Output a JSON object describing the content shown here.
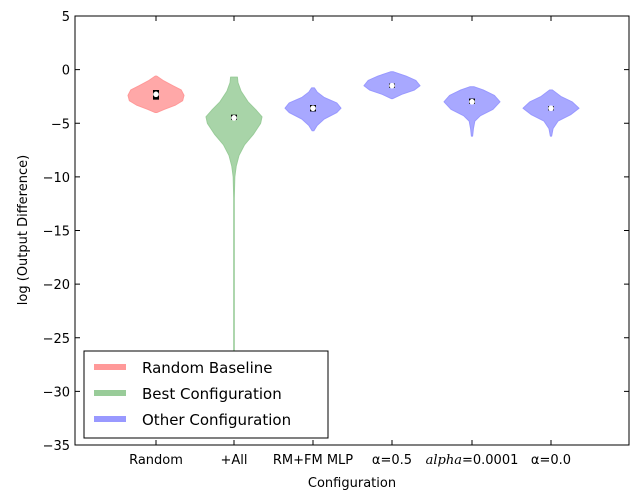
{
  "chart_data": {
    "type": "violin",
    "xlabel": "Configuration",
    "ylabel": "log (Output Difference)",
    "ylim": [
      -35,
      5
    ],
    "yticks": [
      5,
      0,
      -5,
      -10,
      -15,
      -20,
      -25,
      -30,
      -35
    ],
    "ytick_labels": [
      "5",
      "0",
      "−5",
      "−10",
      "−15",
      "−20",
      "−25",
      "−30",
      "−35"
    ],
    "grid": false,
    "legend_location": "lower-left",
    "categories": [
      "Random",
      "+All",
      "RM+FM MLP",
      "α=0.5",
      "alpha=0.0001",
      "α=0.0"
    ],
    "category_labels": [
      {
        "text": "Random"
      },
      {
        "text": "+All"
      },
      {
        "text": "RM+FM MLP"
      },
      {
        "prefix": "α",
        "suffix": "=0.5"
      },
      {
        "prefix": "alpha",
        "suffix": "=0.0001",
        "italic_prefix": true
      },
      {
        "prefix": "α",
        "suffix": "=0.0"
      }
    ],
    "legend": [
      {
        "label": "Random Baseline",
        "color": "#ff9999"
      },
      {
        "label": "Best Configuration",
        "color": "#99cc99"
      },
      {
        "label": "Other Configuration",
        "color": "#9999ff"
      }
    ],
    "series": [
      {
        "category": "Random",
        "group": "Random Baseline",
        "color": "#ff9999",
        "min": -4.0,
        "max": -0.6,
        "q1": -2.8,
        "median": -2.3,
        "q3": -1.9,
        "profile": [
          [
            -4.0,
            0.03
          ],
          [
            -3.7,
            0.3
          ],
          [
            -3.3,
            0.7
          ],
          [
            -2.9,
            0.95
          ],
          [
            -2.4,
            1.0
          ],
          [
            -1.9,
            0.9
          ],
          [
            -1.5,
            0.6
          ],
          [
            -1.0,
            0.25
          ],
          [
            -0.6,
            0.03
          ]
        ]
      },
      {
        "category": "+All",
        "group": "Best Configuration",
        "color": "#99cc99",
        "min": -27.0,
        "max": -0.7,
        "q1": -4.7,
        "median": -4.5,
        "q3": -4.2,
        "profile": [
          [
            -27.0,
            0.012
          ],
          [
            -20.0,
            0.012
          ],
          [
            -12.0,
            0.012
          ],
          [
            -10.0,
            0.03
          ],
          [
            -9.0,
            0.08
          ],
          [
            -8.0,
            0.18
          ],
          [
            -7.0,
            0.38
          ],
          [
            -6.0,
            0.7
          ],
          [
            -5.0,
            0.95
          ],
          [
            -4.4,
            1.0
          ],
          [
            -3.8,
            0.8
          ],
          [
            -3.0,
            0.5
          ],
          [
            -2.0,
            0.25
          ],
          [
            -1.2,
            0.14
          ],
          [
            -0.7,
            0.12
          ]
        ]
      },
      {
        "category": "RM+FM MLP",
        "group": "Other Configuration",
        "color": "#9999ff",
        "min": -5.7,
        "max": -1.7,
        "q1": -3.9,
        "median": -3.6,
        "q3": -3.3,
        "profile": [
          [
            -5.7,
            0.03
          ],
          [
            -5.2,
            0.15
          ],
          [
            -4.6,
            0.4
          ],
          [
            -4.0,
            0.85
          ],
          [
            -3.6,
            1.0
          ],
          [
            -3.1,
            0.85
          ],
          [
            -2.6,
            0.4
          ],
          [
            -2.1,
            0.15
          ],
          [
            -1.7,
            0.05
          ]
        ]
      },
      {
        "category": "α=0.5",
        "group": "Other Configuration",
        "color": "#9999ff",
        "min": -2.7,
        "max": -0.2,
        "q1": -1.7,
        "median": -1.5,
        "q3": -1.3,
        "profile": [
          [
            -2.7,
            0.03
          ],
          [
            -2.3,
            0.35
          ],
          [
            -1.9,
            0.8
          ],
          [
            -1.5,
            1.0
          ],
          [
            -1.0,
            0.85
          ],
          [
            -0.6,
            0.5
          ],
          [
            -0.2,
            0.05
          ]
        ]
      },
      {
        "category": "alpha=0.0001",
        "group": "Other Configuration",
        "color": "#9999ff",
        "min": -6.2,
        "max": -1.6,
        "q1": -3.2,
        "median": -3.0,
        "q3": -2.7,
        "profile": [
          [
            -6.2,
            0.02
          ],
          [
            -5.5,
            0.05
          ],
          [
            -4.8,
            0.1
          ],
          [
            -4.3,
            0.3
          ],
          [
            -3.7,
            0.75
          ],
          [
            -3.0,
            1.0
          ],
          [
            -2.4,
            0.8
          ],
          [
            -1.9,
            0.4
          ],
          [
            -1.6,
            0.08
          ]
        ]
      },
      {
        "category": "α=0.0",
        "group": "Other Configuration",
        "color": "#9999ff",
        "min": -6.2,
        "max": -1.9,
        "q1": -3.8,
        "median": -3.6,
        "q3": -3.4,
        "profile": [
          [
            -6.2,
            0.02
          ],
          [
            -5.5,
            0.07
          ],
          [
            -4.8,
            0.25
          ],
          [
            -4.2,
            0.7
          ],
          [
            -3.6,
            1.0
          ],
          [
            -3.0,
            0.75
          ],
          [
            -2.5,
            0.35
          ],
          [
            -1.9,
            0.05
          ]
        ]
      }
    ]
  }
}
